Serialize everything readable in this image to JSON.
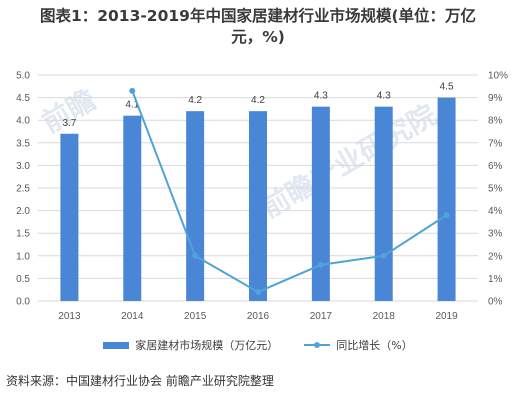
{
  "title": {
    "line1": "图表1：2013-2019年中国家居建材行业市场规模(单位：万亿",
    "line2": "元，%)"
  },
  "source": "资料来源：中国建材行业协会 前瞻产业研究院整理",
  "legend": {
    "bar_label": "家居建材市场规模（万亿元）",
    "line_label": "同比增长（%）"
  },
  "colors": {
    "bar": "#4a86d6",
    "line": "#4fa3d8",
    "grid": "#d9d9d9"
  },
  "chart_data": {
    "type": "bar",
    "categories": [
      "2013",
      "2014",
      "2015",
      "2016",
      "2017",
      "2018",
      "2019"
    ],
    "series": [
      {
        "name": "家居建材市场规模（万亿元）",
        "type": "bar",
        "axis": "left",
        "values": [
          3.7,
          4.1,
          4.2,
          4.2,
          4.3,
          4.3,
          4.5
        ],
        "labels": [
          "3.7",
          "4.1",
          "4.2",
          "4.2",
          "4.3",
          "4.3",
          "4.5"
        ]
      },
      {
        "name": "同比增长（%）",
        "type": "line",
        "axis": "right",
        "values": [
          null,
          9.3,
          2.0,
          0.4,
          1.6,
          2.0,
          3.8
        ]
      }
    ],
    "y_left": {
      "ticks": [
        "0.0",
        "0.5",
        "1.0",
        "1.5",
        "2.0",
        "2.5",
        "3.0",
        "3.5",
        "4.0",
        "4.5",
        "5.0"
      ],
      "ylim": [
        0,
        5
      ]
    },
    "y_right": {
      "ticks": [
        "0%",
        "1%",
        "2%",
        "3%",
        "4%",
        "5%",
        "6%",
        "7%",
        "8%",
        "9%",
        "10%"
      ],
      "ylim": [
        0,
        10
      ]
    },
    "grid": true,
    "legend_position": "bottom"
  }
}
